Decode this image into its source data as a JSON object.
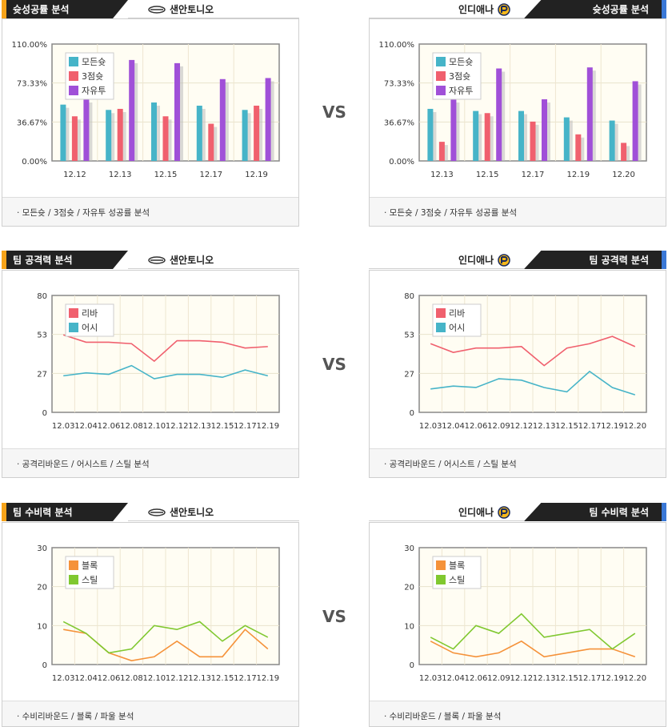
{
  "vs_label": "VS",
  "sections": [
    {
      "title": "슛성공률 분석",
      "left_team": "샌안토니오",
      "right_team": "인디애나",
      "footer": "· 모든슛 / 3점슛 / 자유투 성공률 분석",
      "charts": [
        {
          "type": "bar",
          "categories": [
            "12.12",
            "12.13",
            "12.15",
            "12.17",
            "12.19"
          ],
          "ylim": [
            0,
            110
          ],
          "yticks": [
            "0.00%",
            "36.67%",
            "73.33%",
            "110.00%"
          ],
          "series": [
            {
              "name": "모든슛",
              "color": "#46b4c8",
              "values": [
                53,
                48,
                55,
                52,
                48
              ]
            },
            {
              "name": "3점슛",
              "color": "#f0606e",
              "values": [
                42,
                49,
                42,
                35,
                52
              ]
            },
            {
              "name": "자유투",
              "color": "#a050d8",
              "values": [
                58,
                95,
                92,
                77,
                78
              ]
            }
          ]
        },
        {
          "type": "bar",
          "categories": [
            "12.13",
            "12.15",
            "12.17",
            "12.19",
            "12.20"
          ],
          "ylim": [
            0,
            110
          ],
          "yticks": [
            "0.00%",
            "36.67%",
            "73.33%",
            "110.00%"
          ],
          "series": [
            {
              "name": "모든슛",
              "color": "#46b4c8",
              "values": [
                49,
                47,
                47,
                41,
                38
              ]
            },
            {
              "name": "3점슛",
              "color": "#f0606e",
              "values": [
                18,
                45,
                37,
                25,
                17
              ]
            },
            {
              "name": "자유투",
              "color": "#a050d8",
              "values": [
                58,
                87,
                58,
                88,
                75
              ]
            }
          ]
        }
      ]
    },
    {
      "title": "팀 공격력 분석",
      "left_team": "샌안토니오",
      "right_team": "인디애나",
      "footer": "· 공격리바운드 / 어시스트 / 스틸 분석",
      "charts": [
        {
          "type": "line",
          "categories": [
            "12.03",
            "12.04",
            "12.06",
            "12.08",
            "12.10",
            "12.12",
            "12.13",
            "12.15",
            "12.17",
            "12.19"
          ],
          "ylim": [
            0,
            80
          ],
          "yticks": [
            "0",
            "27",
            "53",
            "80"
          ],
          "series": [
            {
              "name": "리바",
              "color": "#f0606e",
              "values": [
                53,
                48,
                48,
                47,
                35,
                49,
                49,
                48,
                44,
                45
              ]
            },
            {
              "name": "어시",
              "color": "#46b4c8",
              "values": [
                25,
                27,
                26,
                32,
                23,
                26,
                26,
                24,
                29,
                25
              ]
            }
          ]
        },
        {
          "type": "line",
          "categories": [
            "12.03",
            "12.04",
            "12.06",
            "12.09",
            "12.12",
            "12.13",
            "12.15",
            "12.17",
            "12.19",
            "12.20"
          ],
          "ylim": [
            0,
            80
          ],
          "yticks": [
            "0",
            "27",
            "53",
            "80"
          ],
          "series": [
            {
              "name": "리바",
              "color": "#f0606e",
              "values": [
                47,
                41,
                44,
                44,
                45,
                32,
                44,
                47,
                52,
                45
              ]
            },
            {
              "name": "어시",
              "color": "#46b4c8",
              "values": [
                16,
                18,
                17,
                23,
                22,
                17,
                14,
                28,
                17,
                12
              ]
            }
          ]
        }
      ]
    },
    {
      "title": "팀 수비력 분석",
      "left_team": "샌안토니오",
      "right_team": "인디애나",
      "footer": "· 수비리바운드 / 블록 / 파울 분석",
      "charts": [
        {
          "type": "line",
          "categories": [
            "12.03",
            "12.04",
            "12.06",
            "12.08",
            "12.10",
            "12.12",
            "12.13",
            "12.15",
            "12.17",
            "12.19"
          ],
          "ylim": [
            0,
            30
          ],
          "yticks": [
            "0",
            "10",
            "20",
            "30"
          ],
          "series": [
            {
              "name": "블록",
              "color": "#f5923a",
              "values": [
                9,
                8,
                3,
                1,
                2,
                6,
                2,
                2,
                9,
                4
              ]
            },
            {
              "name": "스틸",
              "color": "#80c830",
              "values": [
                11,
                8,
                3,
                4,
                10,
                9,
                11,
                6,
                10,
                7
              ]
            }
          ]
        },
        {
          "type": "line",
          "categories": [
            "12.03",
            "12.04",
            "12.06",
            "12.09",
            "12.12",
            "12.13",
            "12.15",
            "12.17",
            "12.19",
            "12.20"
          ],
          "ylim": [
            0,
            30
          ],
          "yticks": [
            "0",
            "10",
            "20",
            "30"
          ],
          "series": [
            {
              "name": "블록",
              "color": "#f5923a",
              "values": [
                6,
                3,
                2,
                3,
                6,
                2,
                3,
                4,
                4,
                2
              ]
            },
            {
              "name": "스틸",
              "color": "#80c830",
              "values": [
                7,
                4,
                10,
                8,
                13,
                7,
                8,
                9,
                4,
                8
              ]
            }
          ]
        }
      ]
    }
  ]
}
